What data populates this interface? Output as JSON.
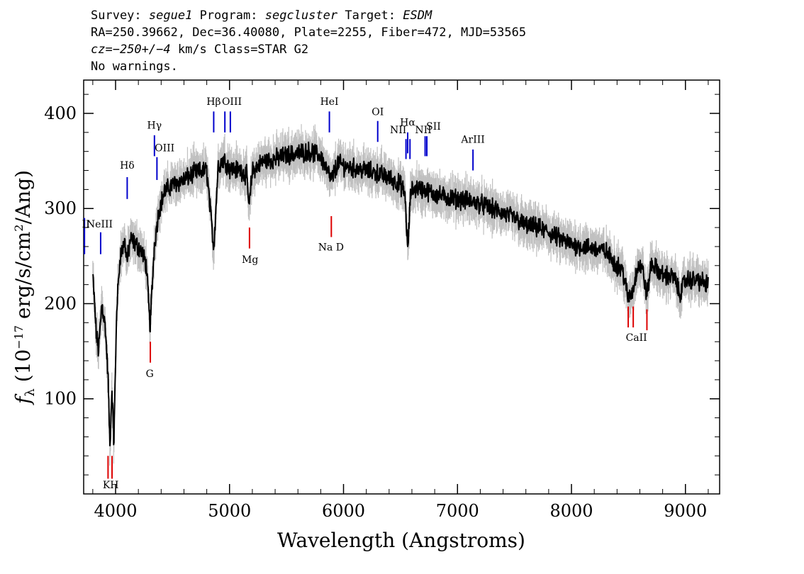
{
  "header": {
    "survey_label": "Survey:",
    "survey": "segue1",
    "program_label": "Program:",
    "program": "segcluster",
    "target_label": "Target:",
    "target": "ESDM",
    "line2": "RA=250.39662, Dec=36.40080, Plate=2255, Fiber=472, MJD=53565",
    "cz_label": "cz=",
    "cz_value": "−250+/−4",
    "cz_rest": " km/s Class=STAR G2",
    "warnings": "No warnings."
  },
  "chart_data": {
    "type": "line",
    "xlabel": "Wavelength (Angstroms)",
    "ylabel_prefix": "f",
    "ylabel_sub": "λ",
    "ylabel_rest_1": " (10",
    "ylabel_exp": "−17",
    "ylabel_rest_2": " erg/s/cm",
    "ylabel_sq": "2",
    "ylabel_rest_3": "/Ang)",
    "xlim": [
      3720,
      9300
    ],
    "ylim": [
      0,
      435
    ],
    "x_ticks": [
      4000,
      5000,
      6000,
      7000,
      8000,
      9000
    ],
    "y_ticks": [
      100,
      200,
      300,
      400
    ],
    "grid": false,
    "series": [
      {
        "color": "#000000",
        "noise_color": "#c0c0c0",
        "x": [
          3800,
          3830,
          3850,
          3880,
          3910,
          3935,
          3950,
          3968,
          3985,
          4010,
          4040,
          4080,
          4102,
          4130,
          4180,
          4230,
          4270,
          4290,
          4302,
          4318,
          4340,
          4380,
          4430,
          4500,
          4600,
          4700,
          4800,
          4861,
          4900,
          4950,
          5000,
          5100,
          5150,
          5172,
          5200,
          5300,
          5400,
          5500,
          5600,
          5700,
          5800,
          5893,
          5950,
          6000,
          6100,
          6200,
          6300,
          6400,
          6500,
          6540,
          6563,
          6590,
          6650,
          6700,
          6800,
          6900,
          7000,
          7100,
          7200,
          7300,
          7400,
          7500,
          7600,
          7700,
          7800,
          7900,
          8000,
          8100,
          8200,
          8300,
          8400,
          8450,
          8498,
          8542,
          8580,
          8620,
          8662,
          8700,
          8800,
          8900,
          8950,
          9000,
          9100,
          9200
        ],
        "y": [
          230,
          170,
          150,
          200,
          175,
          120,
          48,
          110,
          52,
          195,
          250,
          265,
          245,
          268,
          262,
          255,
          240,
          200,
          175,
          210,
          262,
          298,
          318,
          325,
          330,
          338,
          340,
          258,
          345,
          352,
          342,
          340,
          335,
          300,
          340,
          350,
          352,
          356,
          358,
          360,
          355,
          330,
          348,
          345,
          342,
          340,
          337,
          332,
          325,
          315,
          255,
          318,
          322,
          320,
          315,
          312,
          310,
          308,
          305,
          300,
          295,
          290,
          282,
          280,
          275,
          268,
          262,
          260,
          258,
          255,
          240,
          235,
          205,
          215,
          240,
          238,
          208,
          242,
          230,
          228,
          210,
          225,
          225,
          220
        ]
      }
    ],
    "emission_lines": [
      {
        "label": "Hδ",
        "x": 4102,
        "y1": 310,
        "y2": 333
      },
      {
        "label": "Hγ",
        "x": 4341,
        "y1": 355,
        "y2": 377
      },
      {
        "label": "OIII",
        "x": 4363,
        "y1": 330,
        "y2": 354
      },
      {
        "label": "Hβ",
        "x": 4861,
        "y1": 380,
        "y2": 402
      },
      {
        "label": "OIII",
        "x": 4959,
        "y1": 380,
        "y2": 402
      },
      {
        "label": "OIII",
        "x": 5007,
        "y1": 380,
        "y2": 402
      },
      {
        "label": "HeI",
        "x": 5876,
        "y1": 380,
        "y2": 402
      },
      {
        "label": "OI",
        "x": 6300,
        "y1": 370,
        "y2": 392
      },
      {
        "label": "NII",
        "x": 6548,
        "y1": 352,
        "y2": 373
      },
      {
        "label": "Hα",
        "x": 6563,
        "y1": 358,
        "y2": 380
      },
      {
        "label": "NII",
        "x": 6583,
        "y1": 352,
        "y2": 373
      },
      {
        "label": "SII",
        "x": 6716,
        "y1": 355,
        "y2": 376
      },
      {
        "label": "SII",
        "x": 6731,
        "y1": 355,
        "y2": 376
      },
      {
        "label": "ArIII",
        "x": 7136,
        "y1": 340,
        "y2": 362
      },
      {
        "label": "NeIII",
        "x": 3869,
        "y1": 252,
        "y2": 275
      },
      {
        "label": "II",
        "x": 3727,
        "y1": 252,
        "y2": 290
      }
    ],
    "absorption_lines": [
      {
        "label": "K",
        "x": 3934,
        "y1": 16,
        "y2": 40
      },
      {
        "label": "H",
        "x": 3969,
        "y1": 16,
        "y2": 40
      },
      {
        "label": "G",
        "x": 4305,
        "y1": 138,
        "y2": 160
      },
      {
        "label": "Mg",
        "x": 5175,
        "y1": 258,
        "y2": 280
      },
      {
        "label": "Na",
        "x": 5893,
        "y1": 270,
        "y2": 292
      },
      {
        "label": "CaII",
        "x": 8498,
        "y1": 175,
        "y2": 197
      },
      {
        "label": "CaII",
        "x": 8542,
        "y1": 175,
        "y2": 197
      },
      {
        "label": "CaII",
        "x": 8662,
        "y1": 172,
        "y2": 194
      }
    ],
    "text_annotations": [
      {
        "text": "Hδ",
        "x": 4102,
        "y": 342
      },
      {
        "text": "Hγ",
        "x": 4341,
        "y": 384
      },
      {
        "text": "OIII",
        "x": 4430,
        "y": 360
      },
      {
        "text": "Hβ",
        "x": 4861,
        "y": 409
      },
      {
        "text": "OIII",
        "x": 5020,
        "y": 409
      },
      {
        "text": "HeI",
        "x": 5876,
        "y": 409
      },
      {
        "text": "OI",
        "x": 6300,
        "y": 398
      },
      {
        "text": "NII",
        "x": 6480,
        "y": 379
      },
      {
        "text": "Hα",
        "x": 6563,
        "y": 387
      },
      {
        "text": "NII",
        "x": 6700,
        "y": 379
      },
      {
        "text": "SII",
        "x": 6790,
        "y": 383
      },
      {
        "text": "ArIII",
        "x": 7136,
        "y": 369
      },
      {
        "text": "NeIII",
        "x": 3860,
        "y": 280
      },
      {
        "text": "II",
        "x": 3740,
        "y": 280
      },
      {
        "text": "K",
        "x": 3920,
        "y": 6
      },
      {
        "text": "H",
        "x": 3990,
        "y": 6
      },
      {
        "text": "G",
        "x": 4300,
        "y": 123
      },
      {
        "text": "Mg",
        "x": 5180,
        "y": 243
      },
      {
        "text": "Na  D",
        "x": 5890,
        "y": 256
      },
      {
        "text": "CaII",
        "x": 8570,
        "y": 161
      }
    ]
  }
}
